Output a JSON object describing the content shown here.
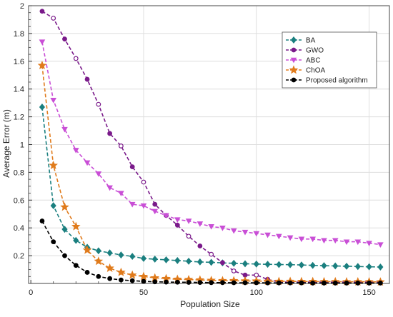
{
  "chart_data": {
    "type": "line",
    "title": "",
    "xlabel": "Population Size",
    "ylabel": "Average Error (m)",
    "xlim": [
      -1,
      159
    ],
    "ylim": [
      0,
      2
    ],
    "x_ticks": [
      0,
      50,
      100,
      150
    ],
    "y_ticks": [
      0.2,
      0.4,
      0.6,
      0.8,
      1,
      1.2,
      1.4,
      1.6,
      1.8,
      2
    ],
    "grid": true,
    "legend_position": "top-right",
    "series": [
      {
        "name": "BA",
        "color": "#1a7f7f",
        "marker": "diamond",
        "fill": "filled",
        "x": [
          5,
          10,
          15,
          20,
          25,
          30,
          35,
          40,
          45,
          50,
          55,
          60,
          65,
          70,
          75,
          80,
          85,
          90,
          95,
          100,
          105,
          110,
          115,
          120,
          125,
          130,
          135,
          140,
          145,
          150,
          155
        ],
        "y": [
          1.27,
          0.56,
          0.39,
          0.31,
          0.26,
          0.235,
          0.22,
          0.205,
          0.195,
          0.18,
          0.175,
          0.17,
          0.165,
          0.16,
          0.155,
          0.152,
          0.148,
          0.145,
          0.142,
          0.14,
          0.138,
          0.136,
          0.135,
          0.133,
          0.13,
          0.128,
          0.126,
          0.124,
          0.122,
          0.12,
          0.118
        ]
      },
      {
        "name": "GWO",
        "color": "#7a1a8a",
        "marker": "circle",
        "fill": "mixed",
        "x": [
          5,
          10,
          15,
          20,
          25,
          30,
          35,
          40,
          45,
          50,
          55,
          60,
          65,
          70,
          75,
          80,
          85,
          90,
          95,
          100,
          105,
          110,
          115,
          120,
          125,
          130,
          135,
          140,
          145,
          150,
          155
        ],
        "y": [
          1.96,
          1.91,
          1.76,
          1.62,
          1.47,
          1.29,
          1.08,
          0.99,
          0.84,
          0.73,
          0.57,
          0.49,
          0.42,
          0.34,
          0.27,
          0.21,
          0.15,
          0.09,
          0.06,
          0.06,
          0.03,
          0.01,
          0.01,
          0.01,
          0.01,
          0.01,
          0.01,
          0.01,
          0.01,
          0.01,
          0.01
        ]
      },
      {
        "name": "ABC",
        "color": "#c94fd6",
        "marker": "triangle-down",
        "fill": "filled",
        "x": [
          5,
          10,
          15,
          20,
          25,
          30,
          35,
          40,
          45,
          50,
          55,
          60,
          65,
          70,
          75,
          80,
          85,
          90,
          95,
          100,
          105,
          110,
          115,
          120,
          125,
          130,
          135,
          140,
          145,
          150,
          155
        ],
        "y": [
          1.74,
          1.32,
          1.11,
          0.96,
          0.87,
          0.79,
          0.69,
          0.65,
          0.57,
          0.56,
          0.52,
          0.49,
          0.46,
          0.45,
          0.43,
          0.41,
          0.4,
          0.38,
          0.37,
          0.36,
          0.35,
          0.34,
          0.33,
          0.32,
          0.32,
          0.31,
          0.31,
          0.3,
          0.3,
          0.29,
          0.28
        ]
      },
      {
        "name": "ChOA",
        "color": "#e07b1c",
        "marker": "star",
        "fill": "filled",
        "x": [
          5,
          10,
          15,
          20,
          25,
          30,
          35,
          40,
          45,
          50,
          55,
          60,
          65,
          70,
          75,
          80,
          85,
          90,
          95,
          100,
          105,
          110,
          115,
          120,
          125,
          130,
          135,
          140,
          145,
          150,
          155
        ],
        "y": [
          1.57,
          0.85,
          0.55,
          0.41,
          0.24,
          0.16,
          0.11,
          0.08,
          0.06,
          0.05,
          0.04,
          0.035,
          0.03,
          0.028,
          0.025,
          0.022,
          0.02,
          0.02,
          0.018,
          0.017,
          0.016,
          0.015,
          0.015,
          0.014,
          0.014,
          0.013,
          0.013,
          0.012,
          0.012,
          0.012,
          0.011
        ]
      },
      {
        "name": "Proposed algorithm",
        "color": "#000000",
        "marker": "circle",
        "fill": "filled",
        "x": [
          5,
          10,
          15,
          20,
          25,
          30,
          35,
          40,
          45,
          50,
          55,
          60,
          65,
          70,
          75,
          80,
          85,
          90,
          95,
          100,
          105,
          110,
          115,
          120,
          125,
          130,
          135,
          140,
          145,
          150,
          155
        ],
        "y": [
          0.45,
          0.3,
          0.2,
          0.13,
          0.08,
          0.05,
          0.035,
          0.025,
          0.02,
          0.015,
          0.012,
          0.01,
          0.009,
          0.008,
          0.007,
          0.006,
          0.006,
          0.005,
          0.005,
          0.005,
          0.004,
          0.004,
          0.004,
          0.004,
          0.003,
          0.003,
          0.003,
          0.003,
          0.003,
          0.003,
          0.003
        ]
      }
    ]
  }
}
